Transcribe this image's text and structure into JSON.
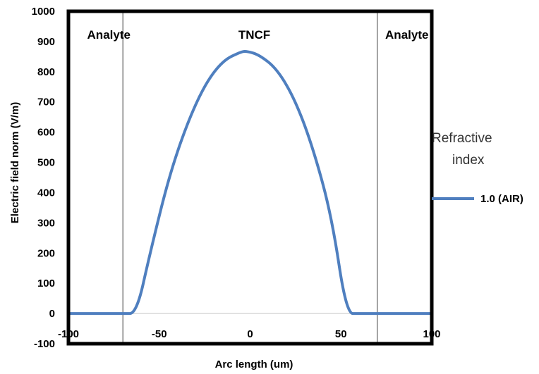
{
  "chart_data": {
    "type": "line",
    "title": "",
    "xlabel": "Arc length (um)",
    "ylabel": "Electric field norm (V/m)",
    "xlim": [
      -100,
      100
    ],
    "ylim": [
      -100,
      1000
    ],
    "x_ticks": [
      -100,
      -50,
      0,
      50,
      100
    ],
    "x_tick_labels": [
      "-100",
      "-50",
      "0",
      "50",
      "100"
    ],
    "y_ticks": [
      -100,
      0,
      100,
      200,
      300,
      400,
      500,
      600,
      700,
      800,
      900,
      1000
    ],
    "y_tick_labels": [
      "-100",
      "0",
      "100",
      "200",
      "300",
      "400",
      "500",
      "600",
      "700",
      "800",
      "900",
      "1000"
    ],
    "grid": false,
    "legend_title": "Refractive index",
    "legend_placement": "right",
    "region_boundaries": [
      -70,
      70
    ],
    "region_labels": [
      "Analyte",
      "TNCF",
      "Analyte"
    ],
    "series": [
      {
        "name": "1.0 (AIR)",
        "color": "#4F7FBF",
        "x": [
          -100,
          -70,
          -62.5,
          -55,
          -45,
          -35,
          -25,
          -15,
          -5,
          -2,
          5,
          15,
          25,
          35,
          45,
          53,
          60,
          70,
          100
        ],
        "y": [
          0,
          0,
          0,
          202,
          445,
          624,
          757,
          837,
          866,
          868,
          856,
          808,
          704,
          541,
          318,
          0,
          0,
          0,
          0
        ]
      }
    ]
  }
}
